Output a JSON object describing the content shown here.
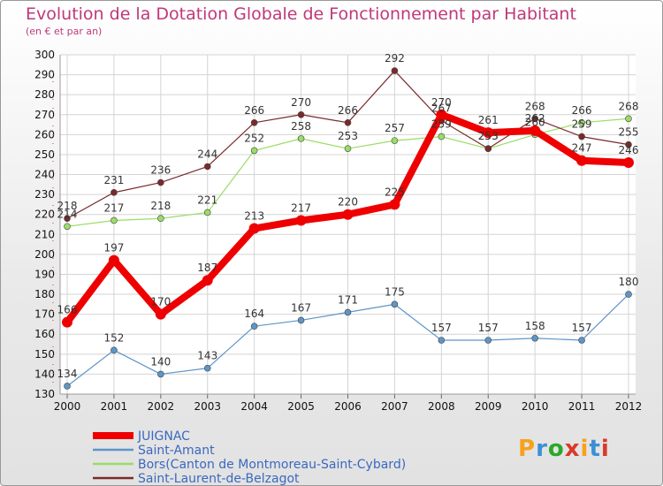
{
  "title": "Evolution de la Dotation Globale de Fonctionnement par Habitant",
  "subtitle": "(en € et par an)",
  "logo": {
    "text": "Proxiti",
    "colors": [
      "#f6a21b",
      "#3c8fd6",
      "#2aa82a",
      "#d93a2a",
      "#f6a21b",
      "#3c8fd6",
      "#d93a2a"
    ]
  },
  "chart_data": {
    "type": "line",
    "title": "Evolution de la Dotation Globale de Fonctionnement par Habitant",
    "subtitle": "(en € et par an)",
    "x": [
      "2000",
      "2001",
      "2002",
      "2003",
      "2004",
      "2005",
      "2006",
      "2007",
      "2008",
      "2009",
      "2010",
      "2011",
      "2012"
    ],
    "ylim": [
      130,
      300
    ],
    "yticks": [
      130,
      140,
      150,
      160,
      170,
      180,
      190,
      200,
      210,
      220,
      230,
      240,
      250,
      260,
      270,
      280,
      290,
      300
    ],
    "grid": true,
    "legend_position": "bottom-left",
    "series": [
      {
        "name": "JUIGNAC",
        "color": "#ee0000",
        "emphasis": true,
        "values": [
          166,
          197,
          170,
          187,
          213,
          217,
          220,
          225,
          270,
          261,
          262,
          247,
          246
        ]
      },
      {
        "name": "Saint-Amant",
        "color": "#5e95c8",
        "emphasis": false,
        "values": [
          134,
          152,
          140,
          143,
          164,
          167,
          171,
          175,
          157,
          157,
          158,
          157,
          180
        ]
      },
      {
        "name": "Bors(Canton de Montmoreau-Saint-Cybard)",
        "color": "#99dd66",
        "emphasis": false,
        "values": [
          214,
          217,
          218,
          221,
          252,
          258,
          253,
          257,
          259,
          253,
          260,
          266,
          268
        ]
      },
      {
        "name": "Saint-Laurent-de-Belzagot",
        "color": "#7a2a2a",
        "emphasis": false,
        "values": [
          218,
          231,
          236,
          244,
          266,
          270,
          266,
          292,
          267,
          253,
          268,
          259,
          255
        ]
      }
    ]
  }
}
